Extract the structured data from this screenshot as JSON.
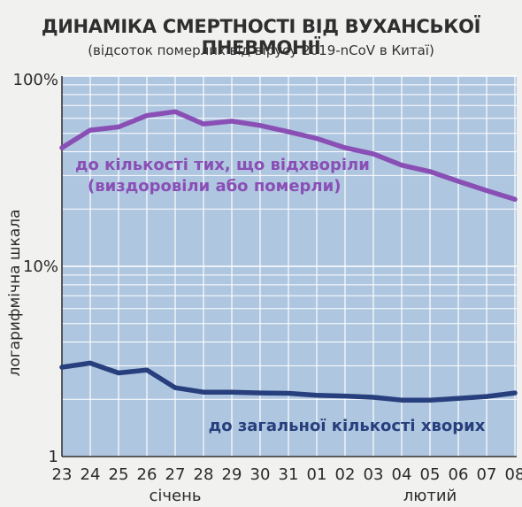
{
  "chart_data": {
    "type": "line",
    "title": "ДИНАМІКА СМЕРТНОСТІ ВІД ВУХАНСЬКОЇ ПНЕВМОНІЇ",
    "subtitle": "(відсоток померлих від вірусу 2019-nCoV в Китаї)",
    "ylabel": "логарифмічна шкала",
    "yscale": "log",
    "ylim": [
      1,
      100
    ],
    "y_ticks": [
      {
        "value": 100,
        "label": "100%"
      },
      {
        "value": 10,
        "label": "10%"
      },
      {
        "value": 1,
        "label": "1"
      }
    ],
    "categories": [
      "23",
      "24",
      "25",
      "26",
      "27",
      "28",
      "29",
      "30",
      "31",
      "01",
      "02",
      "03",
      "04",
      "05",
      "06",
      "07",
      "08"
    ],
    "month_labels": [
      {
        "label": "січень",
        "at": "27"
      },
      {
        "label": "лютий",
        "at": "05"
      }
    ],
    "series": [
      {
        "name": "до кількості тих, що відхворіли (виздоровіли або померли)",
        "name_lines": [
          "до кількості тих, що відхворіли",
          "(виздоровіли або померли)"
        ],
        "color": "#8a4fb5",
        "values": [
          42,
          52,
          54,
          62,
          65,
          56,
          58,
          55,
          51,
          47,
          42,
          39,
          34,
          31.5,
          28,
          25,
          22.5
        ]
      },
      {
        "name": "до загальної кількості хворих",
        "name_lines": [
          "до загальної кількості хворих"
        ],
        "color": "#273f7c",
        "values": [
          2.95,
          3.1,
          2.75,
          2.85,
          2.3,
          2.18,
          2.18,
          2.16,
          2.15,
          2.1,
          2.08,
          2.05,
          1.98,
          1.98,
          2.02,
          2.07,
          2.16
        ]
      }
    ],
    "grid": true,
    "colors": {
      "plot_bg": "#aec6e0",
      "grid": "#ffffff"
    }
  }
}
